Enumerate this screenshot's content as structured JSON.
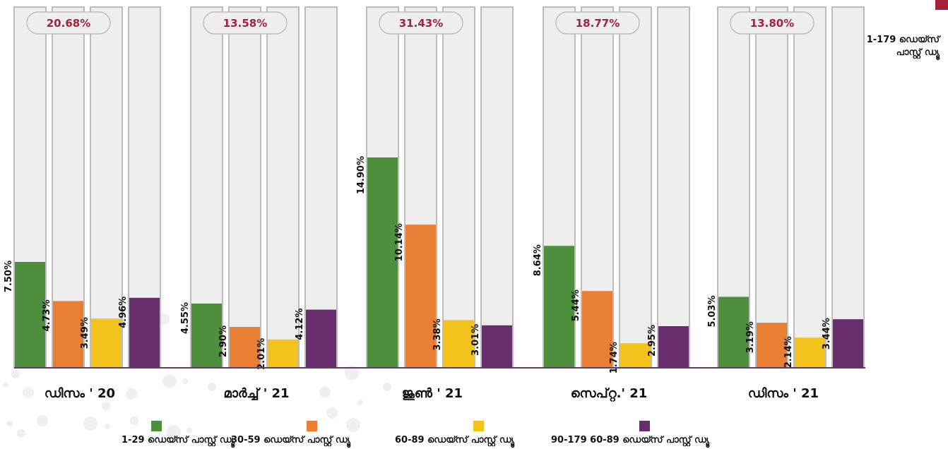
{
  "side_note": "1-179 ഡെയ്സ് പാസ്റ്റ് ഡ്യൂ",
  "colors": {
    "series": [
      "#4e8f3d",
      "#e87f33",
      "#f2c31c",
      "#672d6d"
    ],
    "track": "#eeeeee",
    "track_border": "#bdbdbd",
    "total_text": "#a3213b",
    "axis": "#67386b",
    "corner": "#a3213b"
  },
  "chart_data": {
    "type": "bar",
    "categories": [
      "ഡിസം ' 20",
      "മാർച്ച് ' 21",
      "ജൂൺ ' 21",
      "സെപ്റ്റ.' 21",
      "ഡിസം ' 21"
    ],
    "totals": [
      "20.68%",
      "13.58%",
      "31.43%",
      "18.77%",
      "13.80%"
    ],
    "ylim": [
      0,
      20
    ],
    "legend_position": "bottom",
    "series": [
      {
        "name": "1-29 ഡെയ്സ് പാസ്റ്റ് ഡ്യൂ",
        "values": [
          7.5,
          4.55,
          14.9,
          8.64,
          5.03
        ],
        "labels": [
          "7.50%",
          "4.55%",
          "14.90%",
          "8.64%",
          "5.03%"
        ]
      },
      {
        "name": "30-59 ഡെയ്സ് പാസ്റ്റ് ഡ്യൂ",
        "values": [
          4.73,
          2.9,
          10.14,
          5.44,
          3.19
        ],
        "labels": [
          "4.73%",
          "2.90%",
          "10.14%",
          "5.44%",
          "3.19%"
        ]
      },
      {
        "name": "60-89 ഡെയ്സ് പാസ്റ്റ് ഡ്യൂ",
        "values": [
          3.49,
          2.01,
          3.38,
          1.74,
          2.14
        ],
        "labels": [
          "3.49%",
          "2.01%",
          "3.38%",
          "1.74%",
          "2.14%"
        ]
      },
      {
        "name": "90-179 60-89 ഡെയ്സ് പാസ്റ്റ് ഡ്യൂ",
        "values": [
          4.96,
          4.12,
          3.01,
          2.95,
          3.44
        ],
        "labels": [
          "4.96%",
          "4.12%",
          "3.01%",
          "2.95%",
          "3.44%"
        ]
      }
    ]
  }
}
